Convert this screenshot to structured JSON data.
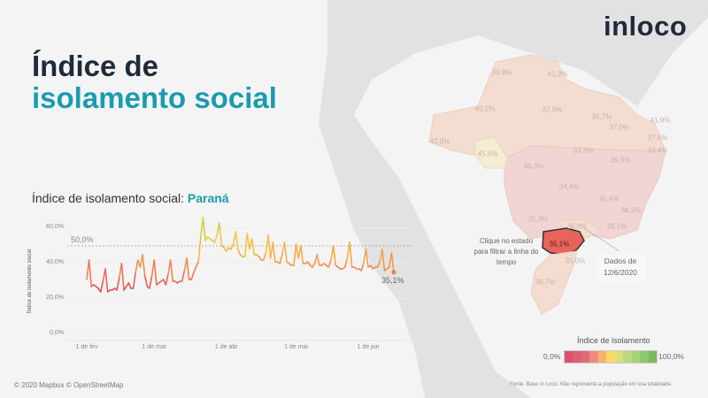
{
  "header": {
    "title_line1": "Índice de",
    "title_line2": "isolamento social",
    "logo": "inloco"
  },
  "chart_heading": {
    "prefix": "Índice de isolamento social: ",
    "state": "Paraná"
  },
  "map": {
    "states": [
      {
        "id": "rr",
        "value": "39,9%"
      },
      {
        "id": "ap",
        "value": "41,3%"
      },
      {
        "id": "am",
        "value": "40,2%"
      },
      {
        "id": "pa",
        "value": "37,0%"
      },
      {
        "id": "ma",
        "value": "35,7%"
      },
      {
        "id": "ce",
        "value": "37,0%"
      },
      {
        "id": "rn",
        "value": "41,9%"
      },
      {
        "id": "pb",
        "value": "37,6%"
      },
      {
        "id": "pe",
        "value": "34,4%"
      },
      {
        "id": "ac",
        "value": "42,0%"
      },
      {
        "id": "ro",
        "value": "45,5%"
      },
      {
        "id": "to",
        "value": "33,3%"
      },
      {
        "id": "ba",
        "value": "35,9%"
      },
      {
        "id": "mt",
        "value": "36,3%"
      },
      {
        "id": "go",
        "value": "34,4%"
      },
      {
        "id": "mg",
        "value": "35,4%"
      },
      {
        "id": "es",
        "value": "36,3%"
      },
      {
        "id": "ms",
        "value": "35,3%"
      },
      {
        "id": "sp",
        "value": "36,8%"
      },
      {
        "id": "rj",
        "value": "38,1%"
      },
      {
        "id": "pr",
        "value": "35,1%"
      },
      {
        "id": "sc",
        "value": "35,0%"
      },
      {
        "id": "rs",
        "value": "36,7%"
      }
    ],
    "hint": "Clique no estado para filtrar a linha do tempo",
    "date_note": "Dados de 12/6/2020",
    "selected_color": "#e8645a"
  },
  "legend": {
    "title": "Índice de isolamento",
    "min": "0,0%",
    "max": "100,0%",
    "colors": [
      "#d9536b",
      "#dd5f70",
      "#e36b78",
      "#ee8a7f",
      "#f7b26c",
      "#fbd964",
      "#dcdd7c",
      "#bcd97a",
      "#a2d374",
      "#8ec86a",
      "#7ab95d"
    ]
  },
  "source": "Fonte: Base In Loco. Não representa a população em sua totalidade.",
  "attribution": "© 2020 Mapbox  © OpenStreetMap",
  "chart_data": {
    "type": "line",
    "title": "Índice de isolamento social: Paraná",
    "ylabel": "Índice de isolamento social",
    "xlabel": "",
    "start_date": "2020-02-01",
    "ylim": [
      0,
      66
    ],
    "yticks": [
      "0,0%",
      "20,0%",
      "40,0%",
      "60,0%"
    ],
    "ytick_values": [
      0,
      20,
      40,
      60
    ],
    "xticks": [
      {
        "label": "1 de fev",
        "day": 0
      },
      {
        "label": "1 de mar",
        "day": 29
      },
      {
        "label": "1 de abr",
        "day": 60
      },
      {
        "label": "1 de mai",
        "day": 90
      },
      {
        "label": "1 de jun",
        "day": 121
      }
    ],
    "reference_line": {
      "value": 50,
      "label": "50,0%"
    },
    "last_label": "35,1%",
    "values": [
      31,
      42,
      27,
      28,
      27,
      26,
      24,
      30,
      37,
      24,
      25,
      25,
      26,
      25,
      32,
      40,
      25,
      27,
      29,
      26,
      26,
      35,
      42,
      38,
      45,
      33,
      27,
      26,
      33,
      42,
      28,
      29,
      30,
      31,
      28,
      34,
      42,
      30,
      30,
      29,
      30,
      30,
      36,
      43,
      31,
      31,
      35,
      38,
      41,
      55,
      66,
      53,
      55,
      54,
      53,
      52,
      56,
      63,
      50,
      49,
      47,
      49,
      48,
      51,
      58,
      48,
      45,
      44,
      44,
      57,
      48,
      54,
      45,
      45,
      44,
      42,
      42,
      46,
      56,
      43,
      52,
      41,
      41,
      40,
      45,
      52,
      41,
      40,
      39,
      39,
      51,
      43,
      50,
      40,
      40,
      41,
      39,
      38,
      40,
      45,
      39,
      39,
      40,
      39,
      38,
      42,
      50,
      39,
      38,
      37,
      37,
      38,
      43,
      52,
      38,
      38,
      37,
      37,
      36,
      40,
      48,
      38,
      39,
      37,
      38,
      38,
      41,
      48,
      36,
      37,
      38,
      46,
      35.1
    ]
  }
}
